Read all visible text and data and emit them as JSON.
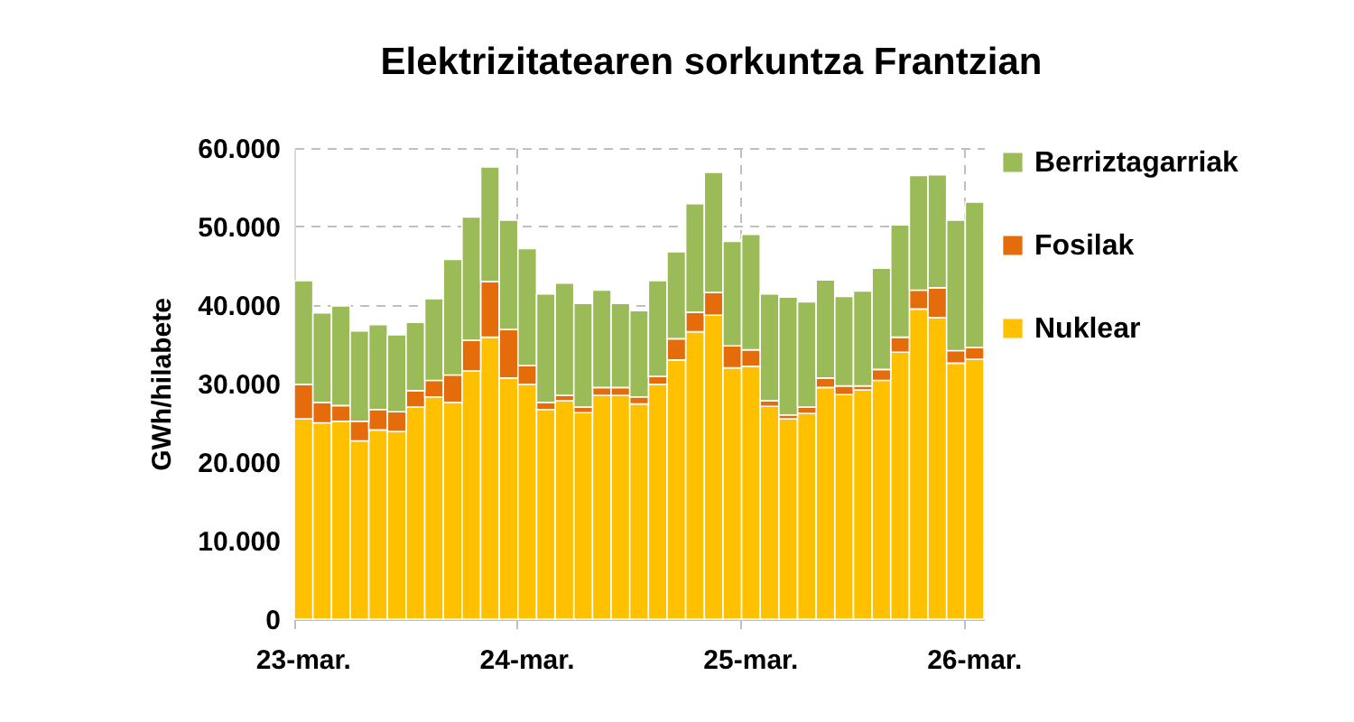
{
  "chart_data": {
    "type": "bar",
    "title": "Elektrizitatearen sorkuntza Frantzian",
    "ylabel": "GWh/hilabete",
    "stacked": true,
    "grid": true,
    "legend": "right",
    "categories": [
      "23-mar.",
      null,
      null,
      null,
      null,
      null,
      null,
      null,
      null,
      null,
      null,
      null,
      "24-mar.",
      null,
      null,
      null,
      null,
      null,
      null,
      null,
      null,
      null,
      null,
      null,
      "25-mar.",
      null,
      null,
      null,
      null,
      null,
      null,
      null,
      null,
      null,
      null,
      null,
      "26-mar."
    ],
    "ylim": [
      0,
      60000
    ],
    "yticks": [
      {
        "value": 0,
        "label": "0"
      },
      {
        "value": 10000,
        "label": "10.000"
      },
      {
        "value": 20000,
        "label": "20.000"
      },
      {
        "value": 30000,
        "label": "30.000"
      },
      {
        "value": 40000,
        "label": "40.000"
      },
      {
        "value": 50000,
        "label": "50.000"
      },
      {
        "value": 60000,
        "label": "60.000"
      }
    ],
    "series": [
      {
        "name": "Nuklear",
        "color": "#ffc000",
        "values": [
          25500,
          25000,
          25200,
          22700,
          24100,
          23900,
          27000,
          28300,
          27600,
          31600,
          35900,
          30700,
          29900,
          26700,
          27800,
          26300,
          28500,
          28500,
          27400,
          29900,
          33000,
          36600,
          38700,
          32000,
          32200,
          27100,
          25500,
          26200,
          29500,
          28600,
          29200,
          30400,
          34000,
          39500,
          38400,
          32600,
          33100
        ]
      },
      {
        "name": "Fosilak",
        "color": "#e46c0a",
        "values": [
          4400,
          2600,
          2000,
          2500,
          2600,
          2500,
          2100,
          2100,
          3500,
          3900,
          7100,
          6200,
          2400,
          900,
          700,
          700,
          1000,
          1000,
          900,
          1000,
          2700,
          2500,
          2900,
          2800,
          2100,
          700,
          500,
          800,
          1200,
          1100,
          500,
          1400,
          1900,
          2400,
          3800,
          1600,
          1500
        ]
      },
      {
        "name": "Berriztagarriak",
        "color": "#9bbb59",
        "values": [
          13200,
          11400,
          12700,
          11500,
          10800,
          9800,
          8700,
          10400,
          14700,
          15700,
          14600,
          13900,
          14900,
          13800,
          14300,
          13200,
          12400,
          10700,
          11000,
          12200,
          11100,
          13800,
          15300,
          13300,
          14700,
          13600,
          15000,
          13400,
          12500,
          11400,
          12100,
          12900,
          14300,
          14600,
          14400,
          16600,
          18500
        ]
      }
    ]
  }
}
